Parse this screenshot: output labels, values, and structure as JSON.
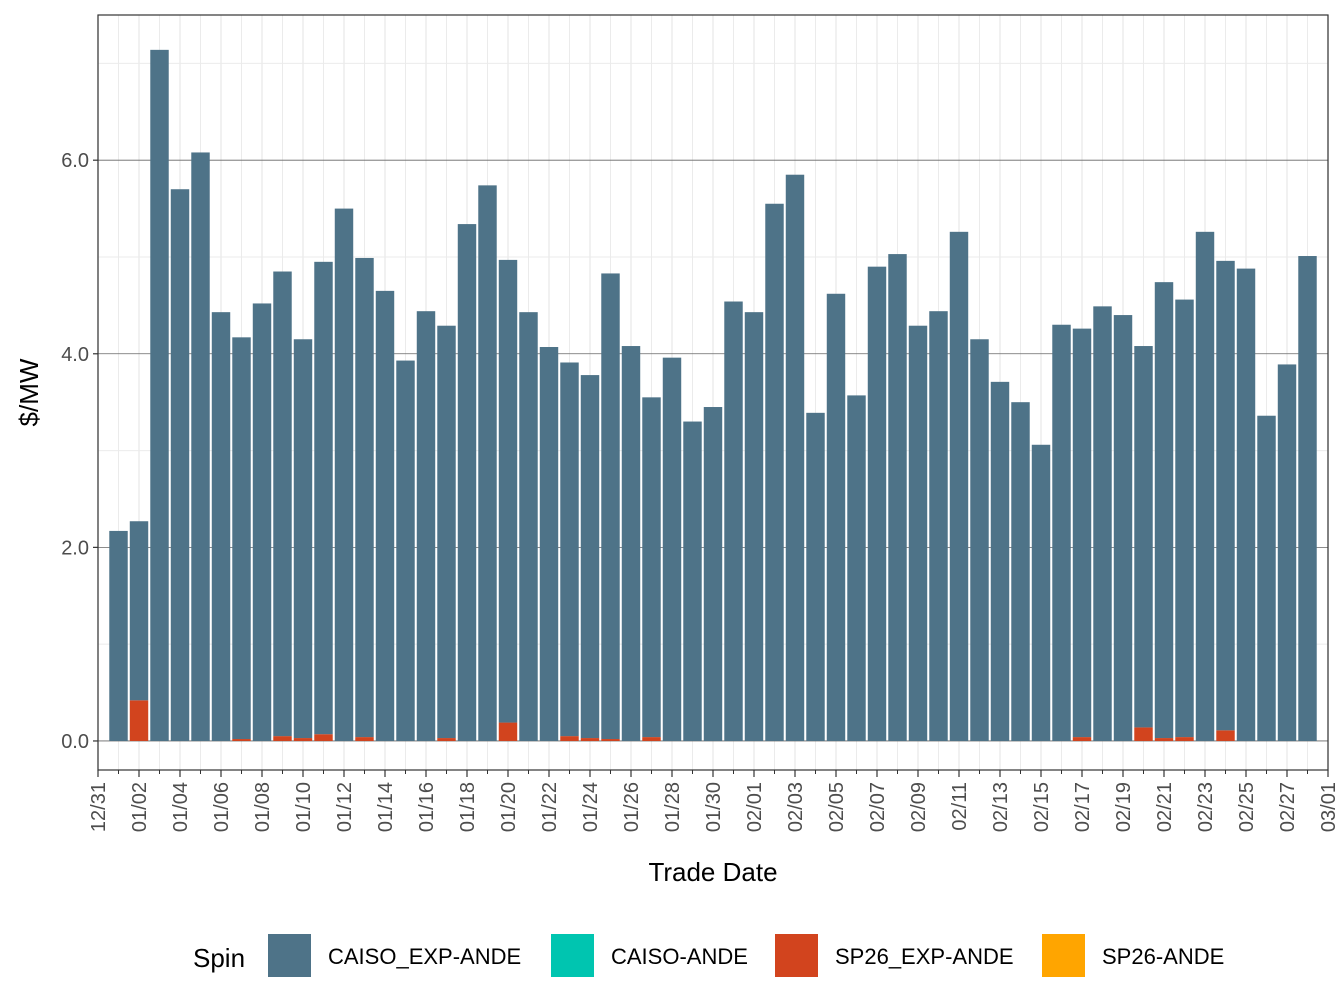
{
  "chart_data": {
    "type": "bar",
    "stacked": true,
    "xlabel": "Trade Date",
    "ylabel": "$/MW",
    "ylim": [
      -0.3,
      7.5
    ],
    "y_ticks": [
      "0.0",
      "2.0",
      "4.0",
      "6.0"
    ],
    "y_tick_values": [
      0,
      2,
      4,
      6
    ],
    "grid": true,
    "legend_position": "bottom",
    "legend_title": "Spin",
    "x_tick_labels": [
      "12/31",
      "01/02",
      "01/04",
      "01/06",
      "01/08",
      "01/10",
      "01/12",
      "01/14",
      "01/16",
      "01/18",
      "01/20",
      "01/22",
      "01/24",
      "01/26",
      "01/28",
      "01/30",
      "02/01",
      "02/03",
      "02/05",
      "02/07",
      "02/09",
      "02/11",
      "02/13",
      "02/15",
      "02/17",
      "02/19",
      "02/21",
      "02/23",
      "02/25",
      "02/27",
      "03/01"
    ],
    "categories": [
      "01/01",
      "01/02",
      "01/03",
      "01/04",
      "01/05",
      "01/06",
      "01/07",
      "01/08",
      "01/09",
      "01/10",
      "01/11",
      "01/12",
      "01/13",
      "01/14",
      "01/15",
      "01/16",
      "01/17",
      "01/18",
      "01/19",
      "01/20",
      "01/21",
      "01/22",
      "01/23",
      "01/24",
      "01/25",
      "01/26",
      "01/27",
      "01/28",
      "01/29",
      "01/30",
      "01/31",
      "02/01",
      "02/02",
      "02/03",
      "02/04",
      "02/05",
      "02/06",
      "02/07",
      "02/08",
      "02/09",
      "02/10",
      "02/11",
      "02/12",
      "02/13",
      "02/14",
      "02/15",
      "02/16",
      "02/17",
      "02/18",
      "02/19",
      "02/20",
      "02/21",
      "02/22",
      "02/23",
      "02/24",
      "02/25",
      "02/26",
      "02/27",
      "02/28"
    ],
    "series": [
      {
        "name": "CAISO_EXP-ANDE",
        "color": "#4e7388",
        "values": [
          2.17,
          1.85,
          7.14,
          5.7,
          6.08,
          4.43,
          4.15,
          4.52,
          4.8,
          4.12,
          4.88,
          5.5,
          4.95,
          4.65,
          3.93,
          4.44,
          4.26,
          5.34,
          5.74,
          4.78,
          4.43,
          4.07,
          3.86,
          3.75,
          4.81,
          4.08,
          3.51,
          3.96,
          3.3,
          3.45,
          4.54,
          4.43,
          5.55,
          5.85,
          3.39,
          4.62,
          3.57,
          4.9,
          5.03,
          4.29,
          4.44,
          5.26,
          4.15,
          3.71,
          3.5,
          3.06,
          4.3,
          4.22,
          4.49,
          4.4,
          3.94,
          4.71,
          4.52,
          5.26,
          4.85,
          4.88,
          3.36,
          3.89,
          5.01
        ]
      },
      {
        "name": "CAISO-ANDE",
        "color": "#00c5b0",
        "values": [
          0,
          0,
          0,
          0,
          0,
          0,
          0,
          0,
          0,
          0,
          0,
          0,
          0,
          0,
          0,
          0,
          0,
          0,
          0,
          0,
          0,
          0,
          0,
          0,
          0,
          0,
          0,
          0,
          0,
          0,
          0,
          0,
          0,
          0,
          0,
          0,
          0,
          0,
          0,
          0,
          0,
          0,
          0,
          0,
          0,
          0,
          0,
          0,
          0,
          0,
          0,
          0,
          0,
          0,
          0,
          0,
          0,
          0,
          0
        ]
      },
      {
        "name": "SP26_EXP-ANDE",
        "color": "#d2441e",
        "values": [
          0,
          0.42,
          0,
          0,
          0,
          0,
          0.02,
          0,
          0.05,
          0.03,
          0.07,
          0,
          0.04,
          0,
          0,
          0,
          0.03,
          0,
          0,
          0.19,
          0,
          0,
          0.05,
          0.03,
          0.02,
          0,
          0.04,
          0,
          0,
          0,
          0,
          0,
          0,
          0,
          0,
          0,
          0,
          0,
          0,
          0,
          0,
          0,
          0,
          0,
          0,
          0,
          0,
          0.04,
          0,
          0,
          0.14,
          0.03,
          0.04,
          0,
          0.11,
          0,
          0,
          0,
          0
        ]
      },
      {
        "name": "SP26-ANDE",
        "color": "#ffa500",
        "values": [
          0,
          0,
          0,
          0,
          0,
          0,
          0,
          0,
          0,
          0,
          0,
          0,
          0,
          0,
          0,
          0,
          0,
          0,
          0,
          0,
          0,
          0,
          0,
          0,
          0,
          0,
          0,
          0,
          0,
          0,
          0,
          0,
          0,
          0,
          0,
          0,
          0,
          0,
          0,
          0,
          0,
          0,
          0,
          0,
          0,
          0,
          0,
          0,
          0,
          0,
          0,
          0,
          0,
          0,
          0,
          0,
          0,
          0,
          0
        ]
      }
    ]
  }
}
